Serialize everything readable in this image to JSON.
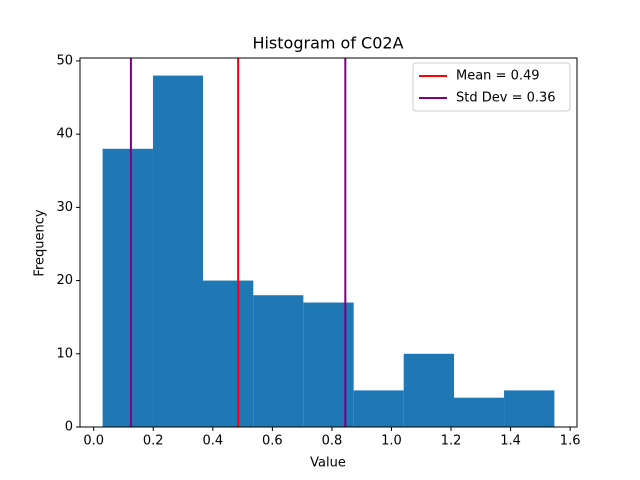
{
  "chart_data": {
    "type": "histogram",
    "title": "Histogram of C02A",
    "xlabel": "Value",
    "ylabel": "Frequency",
    "bins": [
      0.03,
      0.199,
      0.367,
      0.536,
      0.704,
      0.873,
      1.041,
      1.21,
      1.378,
      1.547
    ],
    "values": [
      38,
      48,
      20,
      18,
      17,
      5,
      10,
      4,
      5
    ],
    "color": "#1f77b4",
    "xlim": [
      -0.046,
      1.623
    ],
    "xticks": [
      {
        "value": 0,
        "label": "0.0"
      },
      0.2,
      0.4,
      0.6,
      0.8,
      {
        "value": 1,
        "label": "1.0"
      },
      1.2,
      1.4,
      1.6
    ],
    "ylim": [
      0,
      50.4
    ],
    "yticks": [
      0,
      10,
      20,
      30,
      40,
      50
    ],
    "lines": [
      {
        "name": "Mean = 0.49",
        "color": "red",
        "x": [
          0.485
        ]
      },
      {
        "name": "Std Dev = 0.36",
        "color": "purple",
        "x": [
          0.125,
          0.845
        ]
      }
    ],
    "legend": "upper right"
  }
}
